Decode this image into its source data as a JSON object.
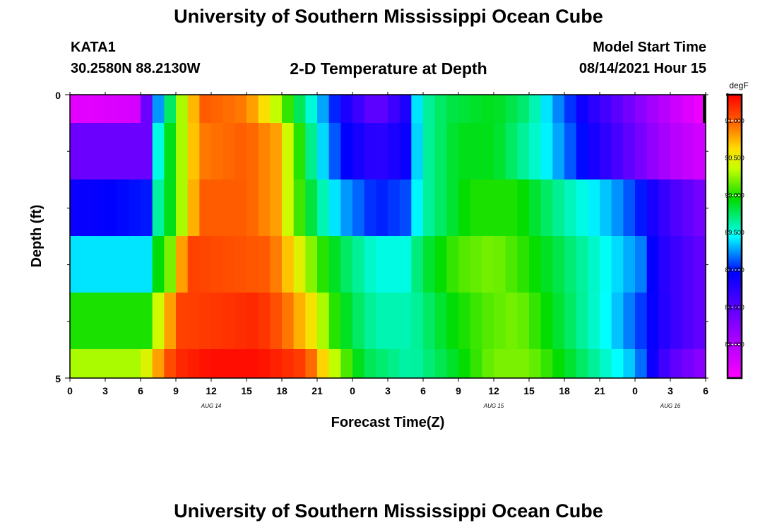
{
  "header": {
    "title": "University of Southern Mississippi Ocean Cube",
    "station": "KATA1",
    "coordinates": "30.2580N  88.2130W",
    "subtitle": "2-D Temperature at Depth",
    "model_start_label": "Model Start Time",
    "model_start_value": "08/14/2021 Hour 15"
  },
  "footer": {
    "title": "University of Southern Mississippi Ocean Cube"
  },
  "chart_data": {
    "type": "heatmap",
    "title": "2-D Temperature at Depth",
    "xlabel": "Forecast Time(Z)",
    "ylabel": "Depth (ft)",
    "x_tick_labels": [
      "0",
      "3",
      "6",
      "9",
      "12",
      "15",
      "18",
      "21",
      "0",
      "3",
      "6",
      "9",
      "12",
      "15",
      "18",
      "21",
      "0",
      "3",
      "6"
    ],
    "x_date_labels": [
      {
        "label": "AUG  14",
        "index": 4
      },
      {
        "label": "AUG  15",
        "index": 12
      },
      {
        "label": "AUG  16",
        "index": 17
      }
    ],
    "x_range_hours": [
      0,
      54
    ],
    "y_tick_labels": [
      "0",
      "5"
    ],
    "y_range": [
      0,
      5
    ],
    "colorbar": {
      "unit": "degF",
      "tick_labels": [
        "91.000",
        "90.500",
        "90.000",
        "89.500",
        "89.000",
        "88.500",
        "88.000"
      ],
      "tick_values": [
        91.0,
        90.5,
        90.0,
        89.5,
        89.0,
        88.5,
        88.0
      ],
      "range": [
        87.55,
        91.35
      ]
    },
    "rows": [
      {
        "depth_band": "0-0.5",
        "keyframes": [
          [
            0,
            87.7
          ],
          [
            6,
            87.8
          ],
          [
            7,
            89.0
          ],
          [
            9,
            90.0
          ],
          [
            10,
            90.6
          ],
          [
            11.5,
            91.0
          ],
          [
            15,
            90.9
          ],
          [
            17,
            90.5
          ],
          [
            19,
            89.9
          ],
          [
            21,
            89.4
          ],
          [
            23,
            88.9
          ],
          [
            26,
            88.4
          ],
          [
            28.5,
            88.8
          ],
          [
            29,
            89.2
          ],
          [
            30,
            89.6
          ],
          [
            32,
            89.8
          ],
          [
            36,
            89.9
          ],
          [
            39,
            89.7
          ],
          [
            41,
            89.3
          ],
          [
            44,
            88.8
          ],
          [
            48,
            88.3
          ],
          [
            51,
            87.9
          ],
          [
            54,
            87.6
          ]
        ]
      },
      {
        "depth_band": "0.5-1.5",
        "keyframes": [
          [
            0,
            88.4
          ],
          [
            6.5,
            88.4
          ],
          [
            7,
            89.3
          ],
          [
            8.5,
            89.9
          ],
          [
            10,
            90.5
          ],
          [
            11,
            90.9
          ],
          [
            15,
            91.0
          ],
          [
            17.5,
            90.8
          ],
          [
            19,
            90.2
          ],
          [
            21,
            89.5
          ],
          [
            23,
            89.0
          ],
          [
            26,
            88.7
          ],
          [
            28.5,
            88.9
          ],
          [
            30,
            89.6
          ],
          [
            33,
            89.9
          ],
          [
            36,
            89.9
          ],
          [
            40,
            89.5
          ],
          [
            44,
            88.9
          ],
          [
            48,
            88.4
          ],
          [
            51,
            88.0
          ],
          [
            54,
            87.8
          ]
        ]
      },
      {
        "depth_band": "1.5-2.5",
        "keyframes": [
          [
            0,
            88.9
          ],
          [
            6.5,
            89.0
          ],
          [
            7,
            89.5
          ],
          [
            8.5,
            89.9
          ],
          [
            10,
            90.5
          ],
          [
            11,
            91.0
          ],
          [
            15,
            91.0
          ],
          [
            17.5,
            90.8
          ],
          [
            19,
            90.2
          ],
          [
            21,
            89.7
          ],
          [
            23,
            89.3
          ],
          [
            26,
            89.0
          ],
          [
            28.5,
            89.1
          ],
          [
            30,
            89.6
          ],
          [
            34,
            90.0
          ],
          [
            38,
            90.0
          ],
          [
            41,
            89.7
          ],
          [
            46,
            89.3
          ],
          [
            48.5,
            89.0
          ],
          [
            51,
            88.6
          ],
          [
            54,
            88.3
          ]
        ]
      },
      {
        "depth_band": "2.5-3.5",
        "keyframes": [
          [
            0,
            89.4
          ],
          [
            6.5,
            89.4
          ],
          [
            7,
            89.8
          ],
          [
            8.5,
            90.2
          ],
          [
            9.5,
            90.8
          ],
          [
            10.5,
            91.1
          ],
          [
            17,
            91.0
          ],
          [
            19,
            90.6
          ],
          [
            21,
            90.1
          ],
          [
            23,
            89.8
          ],
          [
            26,
            89.5
          ],
          [
            28.5,
            89.5
          ],
          [
            30,
            89.8
          ],
          [
            33,
            90.1
          ],
          [
            36,
            90.2
          ],
          [
            39,
            90.0
          ],
          [
            44,
            89.6
          ],
          [
            48.5,
            89.2
          ],
          [
            50,
            88.8
          ],
          [
            54,
            88.4
          ]
        ]
      },
      {
        "depth_band": "3.5-4.5",
        "keyframes": [
          [
            0,
            90.0
          ],
          [
            7,
            90.0
          ],
          [
            7.5,
            90.4
          ],
          [
            8.5,
            90.8
          ],
          [
            9.5,
            91.1
          ],
          [
            16,
            91.2
          ],
          [
            18,
            91.0
          ],
          [
            21,
            90.5
          ],
          [
            22,
            90.1
          ],
          [
            24,
            89.8
          ],
          [
            26,
            89.6
          ],
          [
            29,
            89.6
          ],
          [
            32,
            89.9
          ],
          [
            35,
            90.1
          ],
          [
            38,
            90.2
          ],
          [
            42,
            89.8
          ],
          [
            46,
            89.4
          ],
          [
            49,
            89.0
          ],
          [
            51,
            88.7
          ],
          [
            54,
            88.4
          ]
        ]
      },
      {
        "depth_band": "4.5-5",
        "keyframes": [
          [
            0,
            90.3
          ],
          [
            6,
            90.3
          ],
          [
            7,
            90.6
          ],
          [
            8,
            91.0
          ],
          [
            9.5,
            91.2
          ],
          [
            12,
            91.3
          ],
          [
            16,
            91.3
          ],
          [
            20,
            91.1
          ],
          [
            22,
            90.5
          ],
          [
            23,
            90.2
          ],
          [
            25,
            89.8
          ],
          [
            29,
            89.6
          ],
          [
            33,
            89.9
          ],
          [
            36,
            90.2
          ],
          [
            39,
            90.2
          ],
          [
            43,
            89.8
          ],
          [
            48,
            89.3
          ],
          [
            49.5,
            88.9
          ],
          [
            51,
            88.5
          ],
          [
            54,
            88.2
          ]
        ]
      }
    ]
  }
}
